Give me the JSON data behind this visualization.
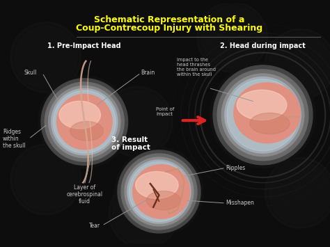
{
  "title_line1": "Schematic Representation of a",
  "title_line2": "Coup-Contrecoup Injury with Shearing",
  "title_color": "#FFFF00",
  "bg_color": "#0d0d0d",
  "section1_title": "1. Pre-Impact Head",
  "section2_title": "2. Head during impact",
  "section3_title": "3. Result\nof impact",
  "label_skull": "Skull",
  "label_brain": "Brain",
  "label_ridges": "Ridges\nwithin\nthe skull",
  "label_csf": "Layer of\ncerebrospinal\nfluid",
  "label_impact_desc": "Impact to the\nhead thrashes\nthe brain around\nwithin the skull",
  "label_point_of_impact": "Point of\nimpact",
  "label_ripples": "Ripples",
  "label_misshapen": "Misshapen",
  "label_tear": "Tear",
  "skull_dark": "#1a1a1a",
  "skull_mid": "#555555",
  "skull_light": "#888888",
  "skull_inner": "#aaaaaa",
  "brain_dark": "#c87860",
  "brain_mid": "#e09080",
  "brain_light": "#f0b8a0",
  "brain_highlight": "#fad8c8",
  "csf_color": "#c8d8e8",
  "white": "#ffffff",
  "arrow_color": "#dd2222",
  "label_color": "#cccccc",
  "line_color": "#999999",
  "watermark_alpha": 0.12
}
